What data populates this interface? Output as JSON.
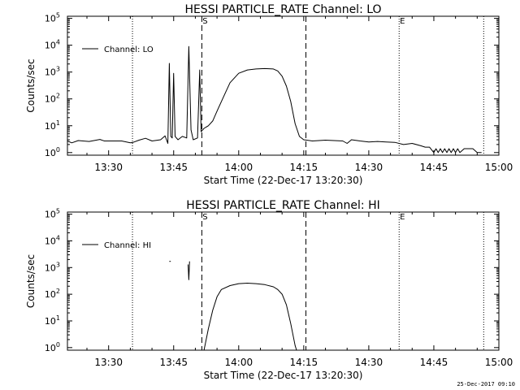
{
  "timestamp": "25-Dec-2017 09:10",
  "chart_data": [
    {
      "type": "line",
      "title": "HESSI PARTICLE_RATE Channel: LO",
      "xlabel": "Start Time (22-Dec-17 13:20:30)",
      "ylabel": "Counts/sec",
      "y_scale": "log",
      "ylim": [
        0.8,
        120000
      ],
      "xlim": [
        "13:20:30",
        "15:00:00"
      ],
      "x_ticks": [
        "13:30",
        "13:45",
        "14:00",
        "14:15",
        "14:30",
        "14:45",
        "15:00"
      ],
      "y_ticks": [
        "10^0",
        "10^1",
        "10^2",
        "10^3",
        "10^4",
        "10^5"
      ],
      "legend": {
        "label": "Channel: LO",
        "position": "top-left"
      },
      "markers": [
        {
          "time": "13:35:30",
          "label": "",
          "style": "dotted"
        },
        {
          "time": "13:51:30",
          "label": "S",
          "style": "dashed"
        },
        {
          "time": "14:15:30",
          "label": "",
          "style": "dashed"
        },
        {
          "time": "14:37:00",
          "label": "E",
          "style": "dotted"
        },
        {
          "time": "14:56:30",
          "label": "",
          "style": "dotted"
        }
      ],
      "series": [
        {
          "name": "Channel: LO",
          "segments": [
            [
              [
                "13:20:30",
                2.7
              ],
              [
                "13:21:30",
                2.3
              ],
              [
                "13:23:00",
                2.8
              ],
              [
                "13:25:30",
                2.6
              ],
              [
                "13:28:00",
                3.1
              ],
              [
                "13:29:00",
                2.7
              ],
              [
                "13:33:00",
                2.7
              ],
              [
                "13:35:00",
                2.3
              ],
              [
                "13:35:40",
                2.4
              ],
              [
                "13:37:00",
                2.9
              ],
              [
                "13:38:30",
                3.4
              ],
              [
                "13:40:00",
                2.7
              ],
              [
                "13:42:00",
                3.0
              ],
              [
                "13:43:00",
                4.2
              ],
              [
                "13:43:40",
                2.2
              ],
              [
                "13:44:00",
                2100
              ],
              [
                "13:44:20",
                4.0
              ],
              [
                "13:44:40",
                3.5
              ],
              [
                "13:45:00",
                900
              ],
              [
                "13:45:20",
                4.0
              ],
              [
                "13:46:00",
                3.0
              ],
              [
                "13:47:00",
                4.0
              ],
              [
                "13:48:00",
                3.5
              ],
              [
                "13:48:30",
                9000
              ],
              [
                "13:49:00",
                7.0
              ],
              [
                "13:49:30",
                3.0
              ],
              [
                "13:50:30",
                3.5
              ],
              [
                "13:51:00",
                1200
              ],
              [
                "13:51:20",
                6.0
              ],
              [
                "13:52:00",
                8.0
              ],
              [
                "13:53:00",
                10.0
              ],
              [
                "13:54:00",
                15.0
              ],
              [
                "13:55:00",
                35.0
              ],
              [
                "13:56:00",
                80.0
              ],
              [
                "13:57:00",
                180.0
              ],
              [
                "13:58:00",
                400.0
              ],
              [
                "14:00:00",
                900.0
              ],
              [
                "14:02:00",
                1200.0
              ],
              [
                "14:04:00",
                1300.0
              ],
              [
                "14:06:00",
                1350.0
              ],
              [
                "14:08:00",
                1300.0
              ],
              [
                "14:09:00",
                1100.0
              ],
              [
                "14:10:00",
                700.0
              ],
              [
                "14:11:00",
                300.0
              ],
              [
                "14:12:00",
                80.0
              ],
              [
                "14:13:00",
                12.0
              ],
              [
                "14:14:00",
                4.0
              ],
              [
                "14:15:00",
                3.0
              ],
              [
                "14:17:00",
                2.7
              ],
              [
                "14:20:00",
                2.9
              ],
              [
                "14:24:00",
                2.7
              ],
              [
                "14:25:00",
                2.2
              ],
              [
                "14:26:00",
                3.0
              ],
              [
                "14:28:00",
                2.7
              ],
              [
                "14:30:00",
                2.5
              ],
              [
                "14:32:00",
                2.6
              ],
              [
                "14:34:00",
                2.5
              ],
              [
                "14:36:00",
                2.4
              ],
              [
                "14:38:00",
                2.0
              ],
              [
                "14:40:00",
                2.2
              ],
              [
                "14:42:00",
                1.8
              ],
              [
                "14:43:00",
                1.6
              ],
              [
                "14:44:00",
                1.6
              ],
              [
                "14:45:00",
                1.0
              ],
              [
                "14:45:30",
                1.4
              ],
              [
                "14:46:00",
                1.0
              ],
              [
                "14:46:30",
                1.4
              ],
              [
                "14:47:00",
                1.0
              ],
              [
                "14:47:30",
                1.4
              ],
              [
                "14:48:00",
                1.0
              ],
              [
                "14:48:30",
                1.4
              ],
              [
                "14:49:00",
                1.0
              ],
              [
                "14:49:30",
                1.4
              ],
              [
                "14:50:00",
                1.0
              ],
              [
                "14:50:30",
                1.4
              ],
              [
                "14:51:00",
                1.0
              ],
              [
                "14:52:00",
                1.4
              ],
              [
                "14:54:00",
                1.4
              ],
              [
                "14:55:00",
                1.0
              ],
              [
                "14:56:00",
                1.0
              ]
            ]
          ]
        }
      ]
    },
    {
      "type": "line",
      "title": "HESSI PARTICLE_RATE Channel: HI",
      "xlabel": "Start Time (22-Dec-17 13:20:30)",
      "ylabel": "Counts/sec",
      "y_scale": "log",
      "ylim": [
        0.8,
        120000
      ],
      "xlim": [
        "13:20:30",
        "15:00:00"
      ],
      "x_ticks": [
        "13:30",
        "13:45",
        "14:00",
        "14:15",
        "14:30",
        "14:45",
        "15:00"
      ],
      "y_ticks": [
        "10^0",
        "10^1",
        "10^2",
        "10^3",
        "10^4",
        "10^5"
      ],
      "legend": {
        "label": "Channel: HI",
        "position": "top-left"
      },
      "markers": [
        {
          "time": "13:35:30",
          "label": "",
          "style": "dotted"
        },
        {
          "time": "13:51:30",
          "label": "S",
          "style": "dashed"
        },
        {
          "time": "14:15:30",
          "label": "",
          "style": "dashed"
        },
        {
          "time": "14:37:00",
          "label": "E",
          "style": "dotted"
        },
        {
          "time": "14:56:30",
          "label": "",
          "style": "dotted"
        }
      ],
      "series": [
        {
          "name": "Channel: HI",
          "segments": [
            [
              [
                "13:44:00",
                1700
              ],
              [
                "13:44:20",
                1700
              ]
            ],
            [
              [
                "13:48:20",
                1300
              ],
              [
                "13:48:30",
                350
              ],
              [
                "13:48:40",
                1700
              ]
            ],
            [
              [
                "13:52:00",
                0.8
              ],
              [
                "13:53:00",
                5.0
              ],
              [
                "13:54:00",
                25.0
              ],
              [
                "13:55:00",
                80.0
              ],
              [
                "13:56:00",
                150.0
              ],
              [
                "13:58:00",
                210.0
              ],
              [
                "14:00:00",
                250.0
              ],
              [
                "14:02:00",
                260.0
              ],
              [
                "14:04:00",
                250.0
              ],
              [
                "14:06:00",
                230.0
              ],
              [
                "14:08:00",
                190.0
              ],
              [
                "14:09:00",
                150.0
              ],
              [
                "14:10:00",
                100.0
              ],
              [
                "14:11:00",
                40.0
              ],
              [
                "14:12:00",
                8.0
              ],
              [
                "14:13:00",
                1.2
              ],
              [
                "14:13:20",
                0.8
              ]
            ]
          ]
        }
      ]
    }
  ]
}
